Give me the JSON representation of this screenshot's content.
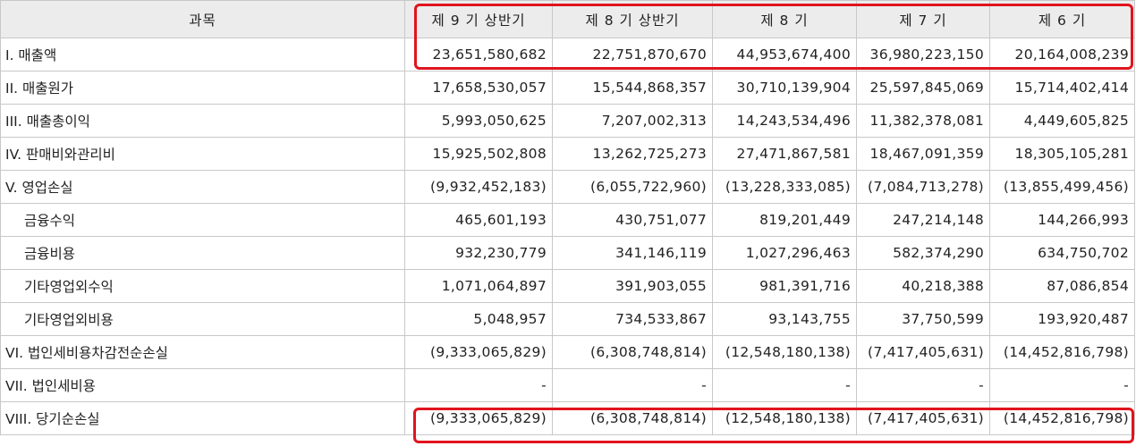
{
  "table": {
    "headers": [
      "과목",
      "제 9 기 상반기",
      "제 8 기 상반기",
      "제 8 기",
      "제 7 기",
      "제 6 기"
    ],
    "rows": [
      {
        "label": "I. 매출액",
        "values": [
          "23,651,580,682",
          "22,751,870,670",
          "44,953,674,400",
          "36,980,223,150",
          "20,164,008,239"
        ]
      },
      {
        "label": "II. 매출원가",
        "values": [
          "17,658,530,057",
          "15,544,868,357",
          "30,710,139,904",
          "25,597,845,069",
          "15,714,402,414"
        ]
      },
      {
        "label": "III. 매출총이익",
        "values": [
          "5,993,050,625",
          "7,207,002,313",
          "14,243,534,496",
          "11,382,378,081",
          "4,449,605,825"
        ]
      },
      {
        "label": "IV. 판매비와관리비",
        "values": [
          "15,925,502,808",
          "13,262,725,273",
          "27,471,867,581",
          "18,467,091,359",
          "18,305,105,281"
        ]
      },
      {
        "label": "V. 영업손실",
        "values": [
          "(9,932,452,183)",
          "(6,055,722,960)",
          "(13,228,333,085)",
          "(7,084,713,278)",
          "(13,855,499,456)"
        ]
      },
      {
        "label": "금융수익",
        "values": [
          "465,601,193",
          "430,751,077",
          "819,201,449",
          "247,214,148",
          "144,266,993"
        ]
      },
      {
        "label": "금융비용",
        "values": [
          "932,230,779",
          "341,146,119",
          "1,027,296,463",
          "582,374,290",
          "634,750,702"
        ]
      },
      {
        "label": "기타영업외수익",
        "values": [
          "1,071,064,897",
          "391,903,055",
          "981,391,716",
          "40,218,388",
          "87,086,854"
        ]
      },
      {
        "label": "기타영업외비용",
        "values": [
          "5,048,957",
          "734,533,867",
          "93,143,755",
          "37,750,599",
          "193,920,487"
        ]
      },
      {
        "label": "VI. 법인세비용차감전순손실",
        "values": [
          "(9,333,065,829)",
          "(6,308,748,814)",
          "(12,548,180,138)",
          "(7,417,405,631)",
          "(14,452,816,798)"
        ]
      },
      {
        "label": "VII. 법인세비용",
        "values": [
          "-",
          "-",
          "-",
          "-",
          "-"
        ]
      },
      {
        "label": "VIII. 당기순손실",
        "values": [
          "(9,333,065,829)",
          "(6,308,748,814)",
          "(12,548,180,138)",
          "(7,417,405,631)",
          "(14,452,816,798)"
        ]
      }
    ]
  },
  "highlight_color": "#e0141e"
}
